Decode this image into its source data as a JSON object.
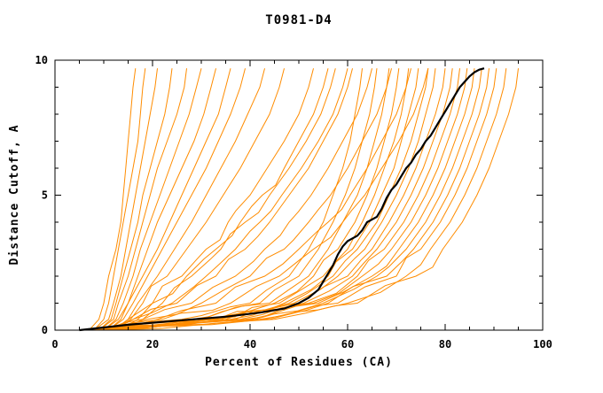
{
  "chart_data": {
    "type": "line",
    "title": "T0981-D4",
    "xlabel": "Percent of Residues (CA)",
    "ylabel": "Distance Cutoff, A",
    "xlim": [
      0,
      100
    ],
    "ylim": [
      0,
      10
    ],
    "x_major_ticks": [
      0,
      20,
      40,
      60,
      80,
      100
    ],
    "x_minor_step": 5,
    "y_major_ticks": [
      0,
      5,
      10
    ],
    "y_minor_step": 1,
    "grid": false,
    "legend": "none",
    "model_color": "#ff8c00",
    "highlight_color": "#000000",
    "y_samples": [
      0,
      0.4,
      1,
      2,
      3,
      4,
      5,
      6,
      7,
      8,
      9,
      9.7
    ],
    "models_x": [
      [
        7,
        9,
        10,
        11,
        12.5,
        13.5,
        14,
        14.5,
        15,
        15.5,
        16,
        16.5
      ],
      [
        8,
        10,
        11,
        12,
        13,
        14,
        15,
        16,
        17,
        17.5,
        18,
        18.5
      ],
      [
        8,
        11,
        12,
        13.5,
        14.5,
        15.5,
        16.5,
        17.5,
        18.5,
        19.5,
        20.5,
        21
      ],
      [
        9,
        11.5,
        12.5,
        14,
        15.5,
        17,
        18,
        19.5,
        21,
        22.5,
        23.5,
        24
      ],
      [
        9,
        12,
        13,
        15,
        16.5,
        18,
        19.5,
        21,
        23,
        25,
        26.5,
        27
      ],
      [
        10,
        12.5,
        14,
        16,
        17.5,
        19.5,
        21.5,
        23.5,
        25.5,
        27.5,
        29,
        30
      ],
      [
        10,
        13,
        15,
        17,
        19,
        21,
        23.5,
        26,
        28.5,
        30.5,
        32,
        33
      ],
      [
        11,
        13.5,
        15,
        18,
        21,
        23.5,
        26,
        28.5,
        31,
        33.5,
        35,
        36
      ],
      [
        11,
        14,
        16,
        19,
        22,
        25,
        28,
        31,
        33.5,
        36,
        38,
        39
      ],
      [
        12,
        15,
        17,
        21,
        24.5,
        28,
        31,
        34,
        37,
        39.5,
        42,
        43
      ],
      [
        12,
        15.5,
        18,
        23,
        27,
        31,
        34.5,
        38,
        41,
        44,
        46,
        47
      ],
      [
        13,
        17,
        20,
        26,
        31,
        35.5,
        40,
        43.5,
        47,
        50,
        52,
        53
      ],
      [
        13,
        18,
        22,
        28,
        34,
        39,
        44,
        48,
        51.5,
        54.5,
        56.5,
        57.5
      ],
      [
        6,
        26,
        40,
        48,
        52,
        55,
        57,
        59,
        60.5,
        61.5,
        62.5,
        63
      ],
      [
        6,
        28,
        42,
        50,
        54,
        57,
        59.5,
        61.5,
        63,
        64.5,
        65.5,
        66
      ],
      [
        7,
        30,
        44,
        52,
        56,
        59,
        62,
        64,
        65.5,
        67,
        68,
        68.5
      ],
      [
        7,
        31,
        45,
        53,
        58,
        61.5,
        64,
        66,
        67.5,
        69,
        70,
        70.5
      ],
      [
        5,
        32,
        46,
        55,
        60,
        63,
        65.5,
        67.5,
        69.5,
        71,
        72,
        72.5
      ],
      [
        6,
        33,
        47,
        56,
        61,
        64.5,
        67,
        69.5,
        71,
        72.5,
        74,
        74.5
      ],
      [
        6,
        34,
        48,
        57,
        62,
        66,
        68.5,
        71,
        73,
        74.5,
        76,
        76.5
      ],
      [
        7,
        35,
        49,
        58,
        63.5,
        67,
        70,
        72.5,
        74.5,
        76,
        77.5,
        78
      ],
      [
        7,
        36,
        50,
        60,
        65,
        68.5,
        71.5,
        74,
        76,
        78,
        79.5,
        80
      ],
      [
        5,
        37,
        51,
        61,
        66,
        70,
        73,
        75.5,
        77.5,
        79.5,
        81,
        81.5
      ],
      [
        6,
        38,
        52,
        62,
        67.5,
        71.5,
        74.5,
        77,
        79,
        81,
        82.5,
        83
      ],
      [
        6,
        39,
        53,
        63,
        69,
        73,
        76,
        78.5,
        80.5,
        82.5,
        84,
        84.5
      ],
      [
        7,
        40,
        54,
        65,
        70.5,
        74.5,
        77.5,
        80,
        82,
        84,
        85.5,
        86
      ],
      [
        7,
        41,
        55,
        66,
        72,
        76,
        79,
        81.5,
        83.5,
        85.5,
        87,
        87.5
      ],
      [
        8,
        42,
        56,
        68,
        73.5,
        77.5,
        80.5,
        83,
        85,
        87,
        88.5,
        89
      ],
      [
        8,
        43,
        58,
        70,
        75,
        79,
        82,
        84.5,
        86.5,
        88.5,
        90,
        90.5
      ],
      [
        8,
        44,
        60,
        72,
        77,
        81,
        84,
        86.5,
        88.5,
        90.5,
        92,
        92.5
      ],
      [
        9,
        45,
        62,
        74,
        79.5,
        83.5,
        86.5,
        89,
        91,
        93,
        94.5,
        95
      ],
      [
        9,
        16,
        25,
        33,
        39,
        44,
        48,
        52,
        55,
        58,
        60,
        61
      ],
      [
        10,
        18,
        28,
        37,
        43,
        48,
        52.5,
        56,
        59,
        62,
        64,
        65
      ],
      [
        10,
        19,
        30,
        40,
        47,
        52,
        56.5,
        60,
        63,
        66,
        68,
        69
      ],
      [
        11,
        21,
        33,
        43,
        50,
        56,
        60.5,
        64,
        67,
        70,
        72,
        73
      ],
      [
        11,
        22,
        36,
        46,
        53,
        59,
        63.5,
        67,
        70.5,
        73.5,
        75.5,
        76.5
      ],
      [
        12,
        15,
        20,
        27,
        33,
        38,
        42.5,
        47,
        50,
        53,
        55,
        56
      ],
      [
        12,
        16,
        24,
        31,
        37,
        42,
        46.5,
        50.5,
        54,
        57,
        59,
        60
      ]
    ],
    "highlight": [
      [
        5,
        0
      ],
      [
        15,
        0.2
      ],
      [
        25,
        0.35
      ],
      [
        35,
        0.5
      ],
      [
        42,
        0.65
      ],
      [
        47,
        0.8
      ],
      [
        50,
        1.0
      ],
      [
        52,
        1.2
      ],
      [
        54,
        1.5
      ],
      [
        55,
        1.8
      ],
      [
        56,
        2.1
      ],
      [
        57,
        2.4
      ],
      [
        58,
        2.8
      ],
      [
        59,
        3.1
      ],
      [
        60,
        3.3
      ],
      [
        62,
        3.5
      ],
      [
        63,
        3.7
      ],
      [
        64,
        4.0
      ],
      [
        66,
        4.2
      ],
      [
        67,
        4.5
      ],
      [
        68,
        4.9
      ],
      [
        69,
        5.2
      ],
      [
        70,
        5.4
      ],
      [
        71,
        5.7
      ],
      [
        72,
        6.0
      ],
      [
        73,
        6.2
      ],
      [
        74,
        6.5
      ],
      [
        75,
        6.7
      ],
      [
        76,
        7.0
      ],
      [
        77,
        7.2
      ],
      [
        78,
        7.5
      ],
      [
        79,
        7.8
      ],
      [
        80,
        8.1
      ],
      [
        81,
        8.4
      ],
      [
        82,
        8.7
      ],
      [
        83,
        9.0
      ],
      [
        84,
        9.2
      ],
      [
        85,
        9.4
      ],
      [
        86,
        9.55
      ],
      [
        87,
        9.65
      ],
      [
        88,
        9.7
      ]
    ]
  }
}
